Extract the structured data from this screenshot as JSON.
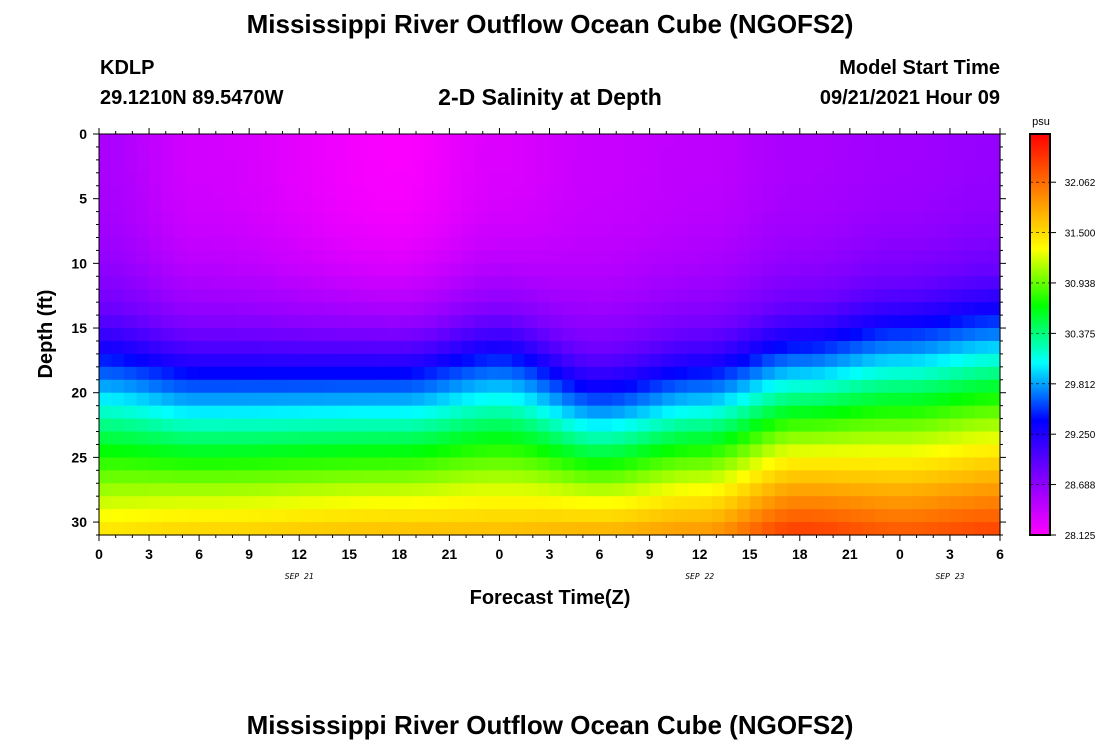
{
  "header": {
    "title": "Mississippi River Outflow Ocean Cube (NGOFS2)",
    "station_id": "KDLP",
    "station_coords": "29.1210N  89.5470W",
    "subtitle": "2-D Salinity at Depth",
    "model_start_label": "Model Start Time",
    "model_start_value": "09/21/2021 Hour 09"
  },
  "footer": {
    "title": "Mississippi River Outflow Ocean Cube (NGOFS2)"
  },
  "chart_data": {
    "type": "heatmap",
    "title": "2-D Salinity at Depth",
    "xlabel": "Forecast Time(Z)",
    "ylabel": "Depth (ft)",
    "x_tick_labels": [
      "0",
      "3",
      "6",
      "9",
      "12",
      "15",
      "18",
      "21",
      "0",
      "3",
      "6",
      "9",
      "12",
      "15",
      "18",
      "21",
      "0",
      "3",
      "6"
    ],
    "x_date_labels": [
      {
        "label": "SEP 21",
        "at_index": 4
      },
      {
        "label": "SEP 22",
        "at_index": 12
      },
      {
        "label": "SEP 23",
        "at_index": 17
      }
    ],
    "xlim_hours": [
      0,
      54
    ],
    "y_tick_labels": [
      "0",
      "5",
      "10",
      "15",
      "20",
      "25",
      "30"
    ],
    "ylim_ft": [
      0,
      31
    ],
    "y_inverted": true,
    "colorbar": {
      "unit": "psu",
      "range": [
        28.125,
        32.6
      ],
      "tick_labels": [
        "32.062",
        "31.500",
        "30.938",
        "30.375",
        "29.812",
        "29.250",
        "28.688",
        "28.125"
      ],
      "colors": [
        "#ff00ff",
        "#8000ff",
        "#0000ff",
        "#00ffff",
        "#00ff00",
        "#ffff00",
        "#ff8000",
        "#ff0000"
      ]
    },
    "salinity_profile": {
      "description_keys": [
        "hour",
        "surface_psu",
        "fresh_layer_bottom_ft",
        "bottom_psu"
      ],
      "points": [
        {
          "hour": 0,
          "surface_psu": 28.55,
          "halocline_ft": 17.5,
          "bottom_psu": 31.5
        },
        {
          "hour": 6,
          "surface_psu": 28.35,
          "halocline_ft": 19.0,
          "bottom_psu": 31.6
        },
        {
          "hour": 18,
          "surface_psu": 28.15,
          "halocline_ft": 19.0,
          "bottom_psu": 31.7
        },
        {
          "hour": 24,
          "surface_psu": 28.3,
          "halocline_ft": 17.5,
          "bottom_psu": 31.7
        },
        {
          "hour": 30,
          "surface_psu": 28.4,
          "halocline_ft": 20.5,
          "bottom_psu": 31.8
        },
        {
          "hour": 36,
          "surface_psu": 28.45,
          "halocline_ft": 19.0,
          "bottom_psu": 31.9
        },
        {
          "hour": 42,
          "surface_psu": 28.55,
          "halocline_ft": 17.0,
          "bottom_psu": 32.35
        },
        {
          "hour": 48,
          "surface_psu": 28.6,
          "halocline_ft": 15.5,
          "bottom_psu": 32.2
        },
        {
          "hour": 54,
          "surface_psu": 28.65,
          "halocline_ft": 14.5,
          "bottom_psu": 32.3
        }
      ]
    }
  }
}
